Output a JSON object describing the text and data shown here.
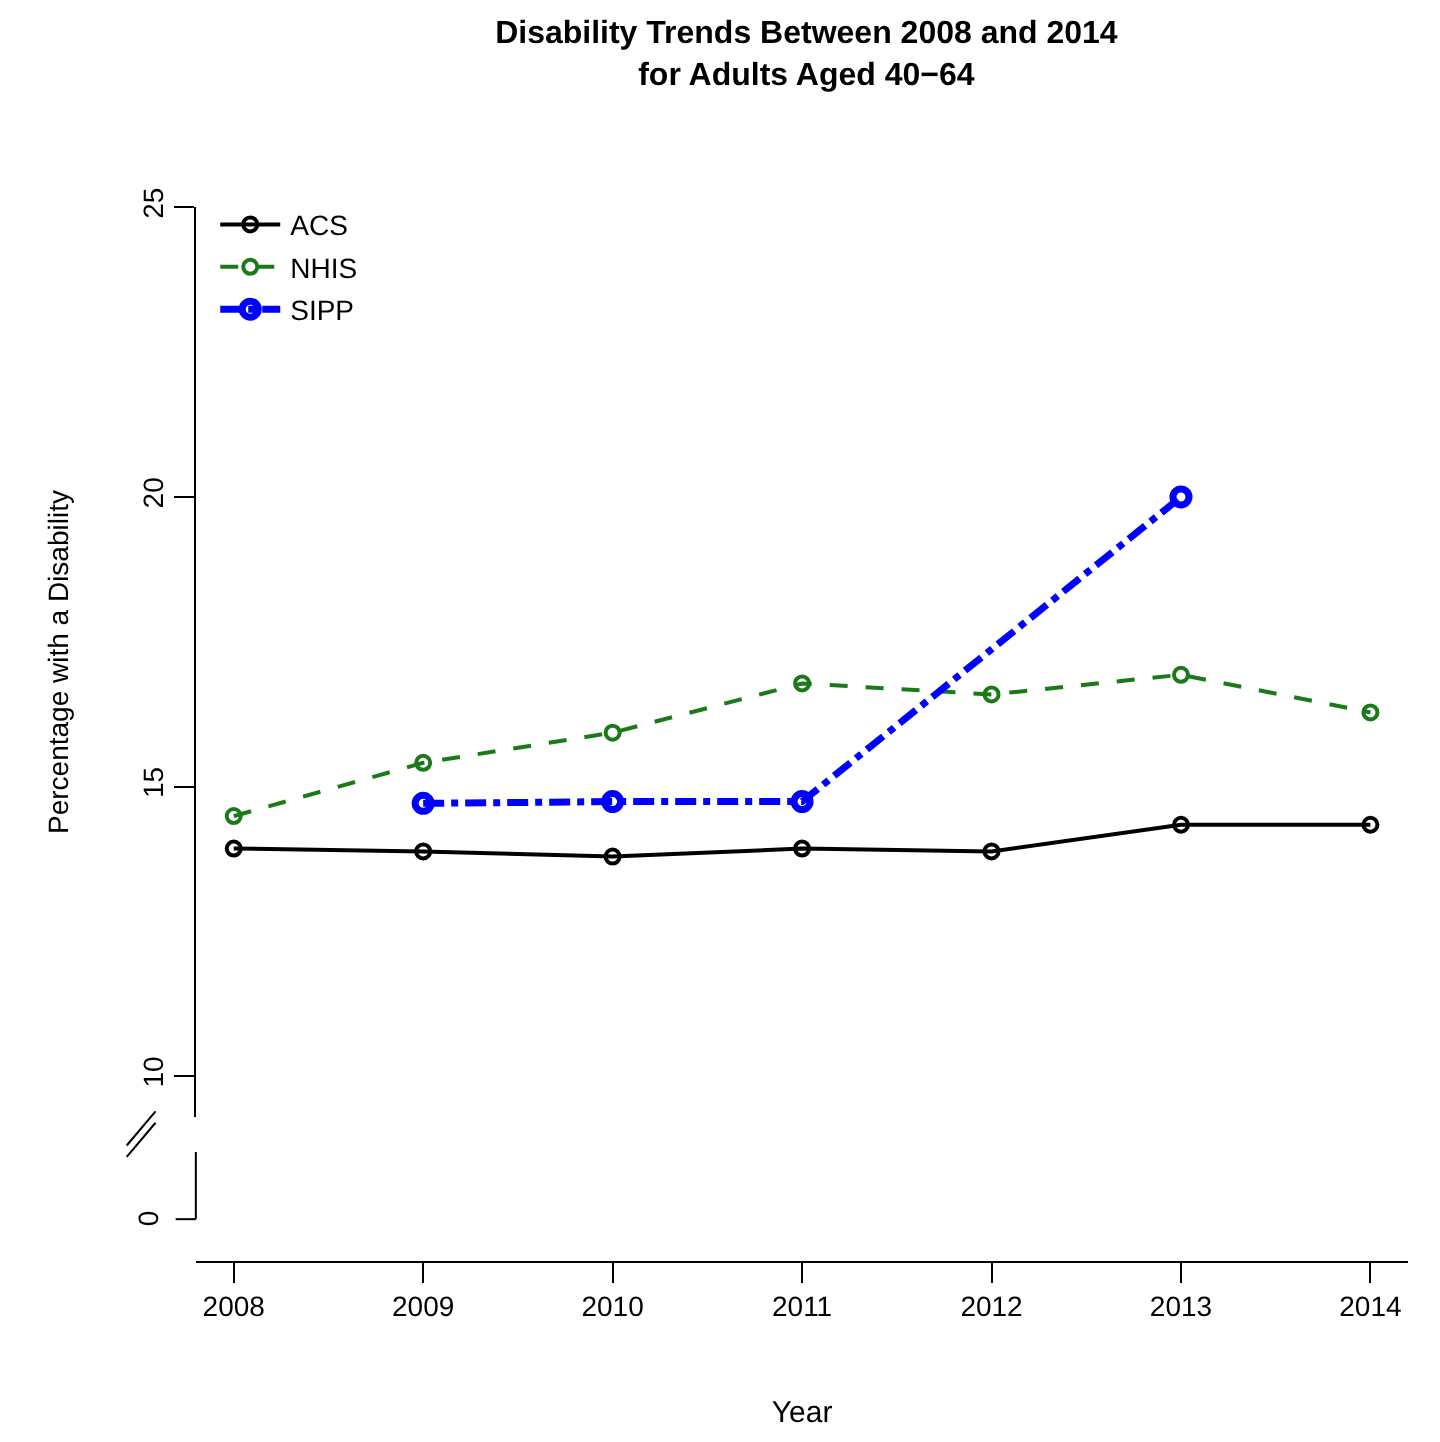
{
  "chart_data": {
    "type": "line",
    "title": "Disability Trends Between 2008 and 2014\nfor Adults Aged 40−64",
    "xlabel": "Year",
    "ylabel": "Percentage with a Disability",
    "x": [
      2008,
      2009,
      2010,
      2011,
      2012,
      2013,
      2014
    ],
    "xlim": [
      2007.8,
      2014.2
    ],
    "xticks": [
      2008,
      2009,
      2010,
      2011,
      2012,
      2013,
      2014
    ],
    "ylim": [
      9.3,
      25
    ],
    "yticks": [
      10,
      15,
      20,
      25
    ],
    "marker": "circle",
    "legend": "top left",
    "annotations": [
      "0"
    ],
    "series": [
      {
        "name": "ACS",
        "color": "#000000",
        "line_style": "solid",
        "values": [
          13.93,
          13.88,
          13.79,
          13.93,
          13.88,
          14.34,
          14.34
        ]
      },
      {
        "name": "NHIS",
        "color": "#1a7a1a",
        "line_style": "dashed",
        "values": [
          14.49,
          15.41,
          15.93,
          16.78,
          16.59,
          16.93,
          16.28
        ]
      },
      {
        "name": "SIPP",
        "color": "#0000ff",
        "line_style": "dashdot",
        "x": [
          2009,
          2010,
          2011,
          2013
        ],
        "values": [
          14.71,
          14.74,
          14.74,
          20.0
        ]
      }
    ]
  }
}
